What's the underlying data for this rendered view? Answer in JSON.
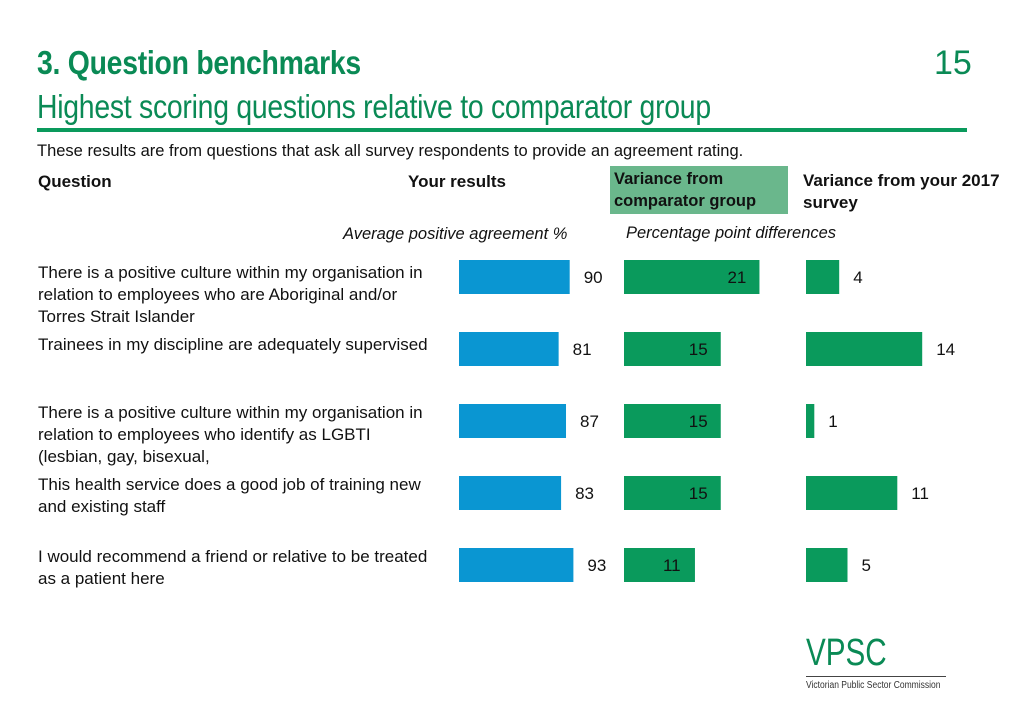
{
  "header": {
    "title": "3. Question benchmarks",
    "subtitle": "Highest scoring questions relative to comparator group",
    "page_number": "15",
    "intro": "These results are from questions that ask all survey respondents to provide an agreement rating."
  },
  "columns": {
    "question": "Question",
    "your_results": "Your results",
    "variance_comparator": "Variance from comparator group",
    "variance_2017": "Variance from your 2017 survey",
    "results_subhead": "Average positive agreement %",
    "variance_subhead": "Percentage point differences"
  },
  "colors": {
    "blue": "#0a96d2",
    "green": "#0a9a5c",
    "heading_green": "#0a8a55",
    "highlight": "#6ab78c"
  },
  "logo": {
    "word": "VPSC",
    "caption": "Victorian Public Sector Commission"
  },
  "chart_data": {
    "type": "bar",
    "orientation": "horizontal",
    "categories": [
      "There is a positive culture within my organisation in relation to employees who are Aboriginal and/or Torres Strait Islander",
      "Trainees in my discipline are adequately supervised",
      "There is a positive culture within my organisation in relation to employees who identify as LGBTI (lesbian, gay, bisexual,",
      "This health service does a good job of training new and existing staff",
      "I would recommend a friend or relative to be treated as a patient here"
    ],
    "series": [
      {
        "name": "Your results",
        "values": [
          90,
          81,
          87,
          83,
          93
        ]
      },
      {
        "name": "Variance from comparator group",
        "values": [
          21,
          15,
          15,
          15,
          11
        ]
      },
      {
        "name": "Variance from your 2017 survey",
        "values": [
          4,
          14,
          1,
          11,
          5
        ]
      }
    ]
  }
}
